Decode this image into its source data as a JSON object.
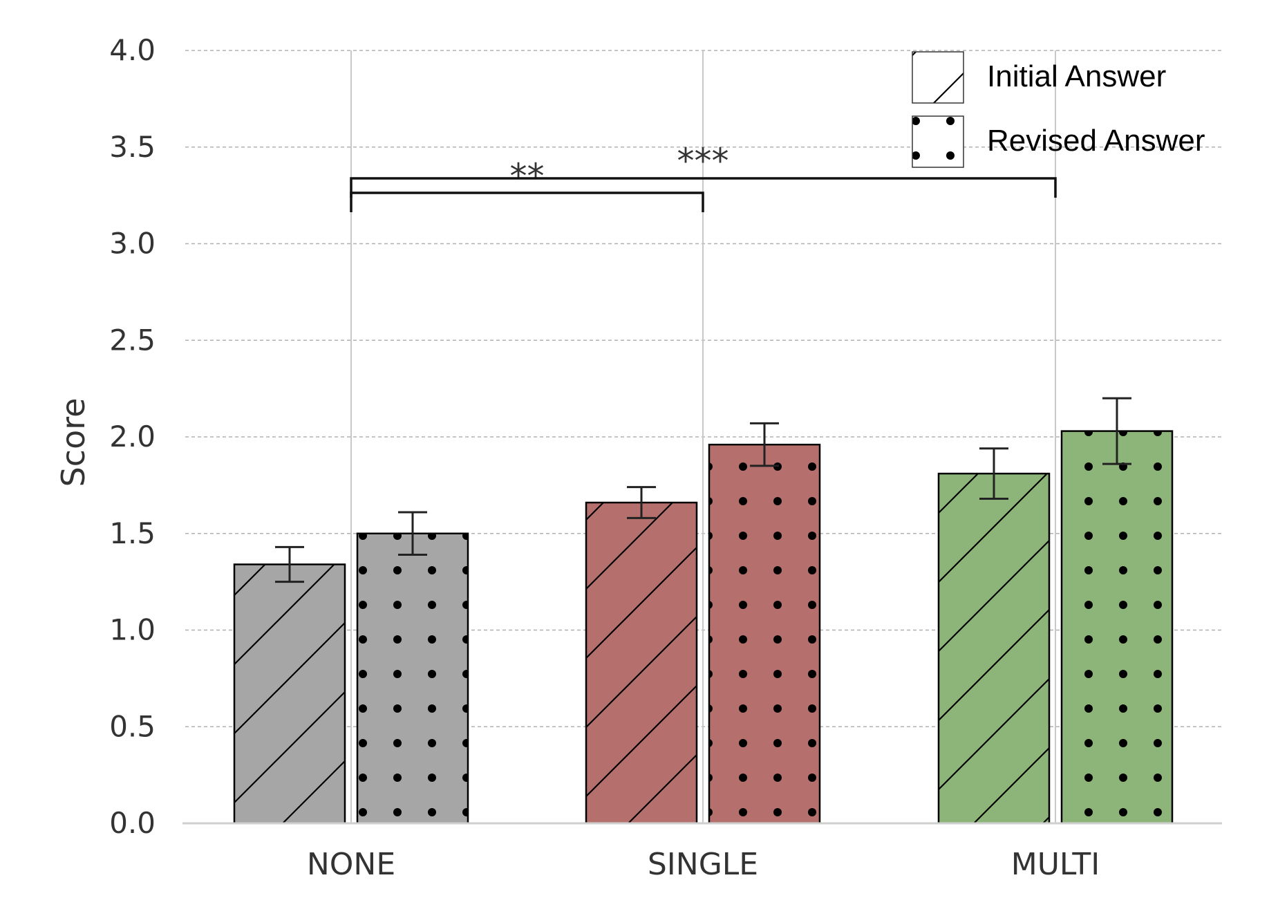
{
  "chart_data": {
    "type": "bar",
    "title": "",
    "xlabel": "",
    "ylabel": "Score",
    "ylim": [
      0,
      4.0
    ],
    "yticks": [
      "0.0",
      "0.5",
      "1.0",
      "1.5",
      "2.0",
      "2.5",
      "3.0",
      "3.5",
      "4.0"
    ],
    "categories": [
      "NONE",
      "SINGLE",
      "MULTI"
    ],
    "category_colors": [
      "#a6a6a6",
      "#b5706d",
      "#8db57a"
    ],
    "series": [
      {
        "name": "Initial Answer",
        "pattern": "hatch",
        "values": [
          1.34,
          1.66,
          1.81
        ],
        "errors": [
          0.09,
          0.08,
          0.13
        ]
      },
      {
        "name": "Revised Answer",
        "pattern": "dots",
        "values": [
          1.5,
          1.96,
          2.03
        ],
        "errors": [
          0.11,
          0.11,
          0.17
        ]
      }
    ],
    "significance": [
      {
        "from": "NONE",
        "to": "SINGLE",
        "label": "**"
      },
      {
        "from": "NONE",
        "to": "MULTI",
        "label": "***"
      }
    ],
    "grid": true,
    "legend_position": "top-right"
  }
}
